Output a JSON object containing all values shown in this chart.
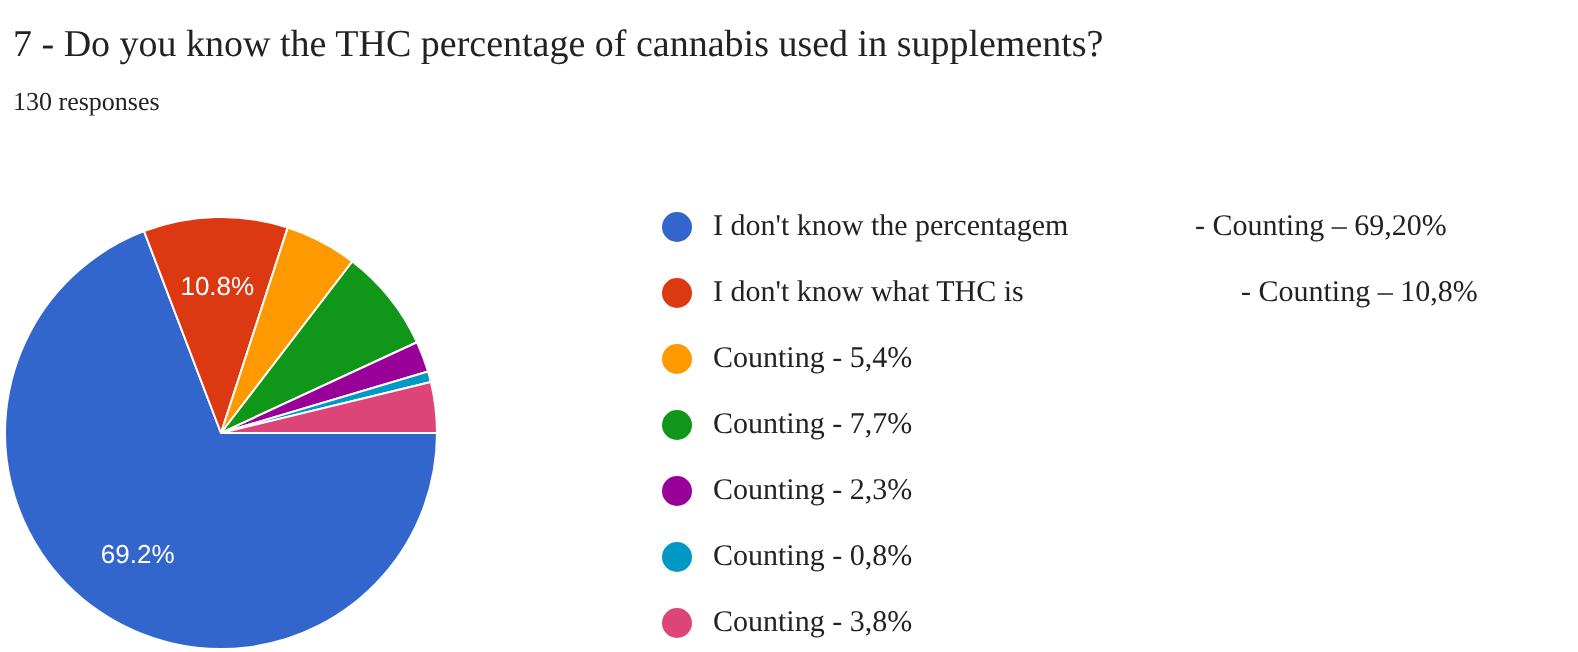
{
  "chart_data": {
    "type": "pie",
    "title": "7 - Do you know the THC percentage of cannabis used in supplements?",
    "subtitle": "130 responses",
    "categories": [
      "I don't know the percentagem",
      "I don't know what THC is",
      "Counting - 5,4%",
      "Counting - 7,7%",
      "Counting - 2,3%",
      "Counting - 0,8%",
      "Counting - 3,8%"
    ],
    "values": [
      69.2,
      10.8,
      5.4,
      7.7,
      2.3,
      0.8,
      3.8
    ],
    "colors": [
      "#3366cc",
      "#dc3912",
      "#ff9900",
      "#109618",
      "#990099",
      "#0099c6",
      "#dd4477"
    ],
    "value_labels": [
      "69.2%",
      "10.8%",
      null,
      null,
      null,
      null,
      null
    ],
    "annotations": [
      "- Counting – 69,20%",
      "- Counting – 10,8%"
    ],
    "legend": "right"
  }
}
